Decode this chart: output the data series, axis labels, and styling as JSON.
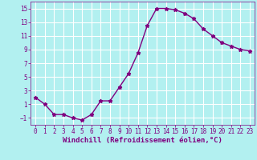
{
  "x": [
    0,
    1,
    2,
    3,
    4,
    5,
    6,
    7,
    8,
    9,
    10,
    11,
    12,
    13,
    14,
    15,
    16,
    17,
    18,
    19,
    20,
    21,
    22,
    23
  ],
  "y": [
    2,
    1,
    -0.5,
    -0.5,
    -1,
    -1.3,
    -0.5,
    1.5,
    1.5,
    3.5,
    5.5,
    8.5,
    12.5,
    15,
    15,
    14.8,
    14.3,
    13.5,
    12,
    11,
    10,
    9.5,
    9,
    8.8
  ],
  "line_color": "#800080",
  "marker": "*",
  "marker_color": "#800080",
  "bg_color": "#b2f0f0",
  "grid_color": "#ffffff",
  "xlabel": "Windchill (Refroidissement éolien,°C)",
  "xlabel_color": "#800080",
  "ylim": [
    -2,
    16
  ],
  "xlim": [
    -0.5,
    23.5
  ],
  "yticks": [
    -1,
    1,
    3,
    5,
    7,
    9,
    11,
    13,
    15
  ],
  "xticks": [
    0,
    1,
    2,
    3,
    4,
    5,
    6,
    7,
    8,
    9,
    10,
    11,
    12,
    13,
    14,
    15,
    16,
    17,
    18,
    19,
    20,
    21,
    22,
    23
  ],
  "tick_color": "#800080",
  "tick_fontsize": 5.5,
  "xlabel_fontsize": 6.5,
  "linewidth": 1.0,
  "markersize": 3.5
}
